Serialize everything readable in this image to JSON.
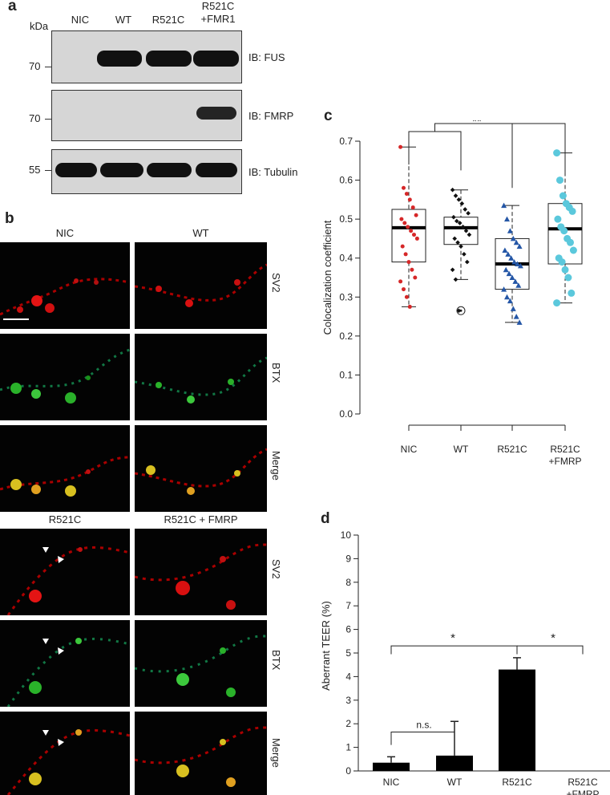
{
  "panel_a": {
    "letter": "a",
    "kda": "kDa",
    "lanes": [
      "NIC",
      "WT",
      "R521C",
      "R521C\n+FMR1"
    ],
    "blots": [
      {
        "marker": "70",
        "label": "IB: FUS",
        "bands": [
          false,
          true,
          true,
          true
        ]
      },
      {
        "marker": "70",
        "label": "IB: FMRP",
        "bands": [
          false,
          false,
          false,
          true
        ]
      },
      {
        "marker": "55",
        "label": "IB: Tubulin",
        "bands": [
          true,
          true,
          true,
          true
        ]
      }
    ]
  },
  "panel_b": {
    "letter": "b",
    "top_titles": [
      "NIC",
      "WT"
    ],
    "bottom_titles": [
      "R521C",
      "R521C + FMRP"
    ],
    "row_labels": [
      "SV2",
      "BTX",
      "Merge"
    ]
  },
  "panel_c": {
    "letter": "c",
    "significance": [
      "**",
      "**"
    ],
    "chart_data": {
      "type": "box",
      "categories": [
        "NIC",
        "WT",
        "R521C",
        "R521C\n+FMRP"
      ],
      "ylabel": "Colocalization coefficient",
      "ylim": [
        0.0,
        0.7
      ],
      "yticks": [
        "0.0",
        "0.1",
        "0.2",
        "0.3",
        "0.4",
        "0.5",
        "0.6",
        "0.7"
      ],
      "colors": [
        "#d62728",
        "#111111",
        "#2456a6",
        "#5bc8dc"
      ],
      "boxes": [
        {
          "min": 0.275,
          "q1": 0.39,
          "median": 0.478,
          "q3": 0.525,
          "max": 0.685
        },
        {
          "min": 0.345,
          "q1": 0.435,
          "median": 0.478,
          "q3": 0.505,
          "max": 0.575,
          "outliers": [
            0.265
          ]
        },
        {
          "min": 0.235,
          "q1": 0.32,
          "median": 0.385,
          "q3": 0.45,
          "max": 0.535
        },
        {
          "min": 0.285,
          "q1": 0.385,
          "median": 0.475,
          "q3": 0.54,
          "max": 0.67
        }
      ],
      "points": [
        [
          0.685,
          0.58,
          0.565,
          0.55,
          0.53,
          0.51,
          0.5,
          0.49,
          0.48,
          0.47,
          0.46,
          0.45,
          0.43,
          0.41,
          0.39,
          0.37,
          0.35,
          0.34,
          0.32,
          0.3,
          0.275
        ],
        [
          0.575,
          0.56,
          0.55,
          0.54,
          0.525,
          0.515,
          0.505,
          0.495,
          0.49,
          0.48,
          0.47,
          0.46,
          0.45,
          0.44,
          0.43,
          0.41,
          0.39,
          0.37,
          0.345,
          0.265
        ],
        [
          0.535,
          0.5,
          0.47,
          0.45,
          0.44,
          0.43,
          0.42,
          0.41,
          0.4,
          0.39,
          0.385,
          0.38,
          0.37,
          0.36,
          0.35,
          0.34,
          0.33,
          0.32,
          0.3,
          0.29,
          0.27,
          0.25,
          0.235
        ],
        [
          0.67,
          0.6,
          0.56,
          0.54,
          0.53,
          0.52,
          0.5,
          0.48,
          0.47,
          0.45,
          0.44,
          0.42,
          0.4,
          0.39,
          0.37,
          0.35,
          0.31,
          0.285
        ]
      ]
    }
  },
  "panel_d": {
    "letter": "d",
    "significance": [
      "*",
      "*",
      "n.s."
    ],
    "chart_data": {
      "type": "bar",
      "categories": [
        "NIC",
        "WT",
        "R521C",
        "R521C\n+FMRP"
      ],
      "values": [
        0.35,
        0.65,
        4.3,
        0
      ],
      "errors": [
        0.25,
        1.45,
        0.5,
        0
      ],
      "ylabel": "Aberrant TEER (%)",
      "ylim": [
        0,
        10
      ],
      "yticks": [
        "0",
        "1",
        "2",
        "3",
        "4",
        "5",
        "6",
        "7",
        "8",
        "9",
        "10"
      ],
      "color": "#000000"
    }
  }
}
